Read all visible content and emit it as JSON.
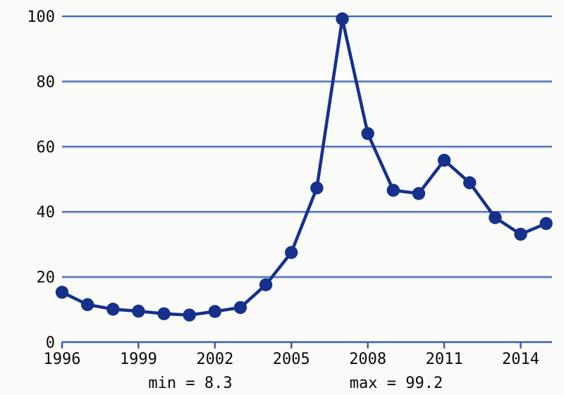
{
  "figure": {
    "background_color": "#fafaf8",
    "series_color": "#16318c",
    "grid_color": "#3a5fa8",
    "grid_halo_color": "#c6daed",
    "label_color": "#0a0a0a"
  },
  "chart_data": {
    "type": "line",
    "title": "",
    "xlabel": "",
    "ylabel": "",
    "x": [
      1996,
      1997,
      1998,
      1999,
      2000,
      2001,
      2002,
      2003,
      2004,
      2005,
      2006,
      2007,
      2008,
      2009,
      2010,
      2011,
      2012,
      2013,
      2014,
      2015
    ],
    "values": [
      15.3,
      11.5,
      10.1,
      9.5,
      8.7,
      8.3,
      9.4,
      10.6,
      17.6,
      27.5,
      47.3,
      99.2,
      64.0,
      46.6,
      45.6,
      55.8,
      48.9,
      38.2,
      33.1,
      36.4
    ],
    "xlim": [
      1996,
      2015
    ],
    "ylim": [
      0,
      100
    ],
    "x_ticks": [
      1996,
      1999,
      2002,
      2005,
      2008,
      2011,
      2014
    ],
    "y_ticks": [
      0,
      20,
      40,
      60,
      80,
      100
    ],
    "grid": true,
    "legend": false,
    "marker": "circle",
    "annotations": {
      "min": 8.3,
      "max": 99.2,
      "min_label": "min = 8.3",
      "max_label": "max = 99.2"
    }
  }
}
